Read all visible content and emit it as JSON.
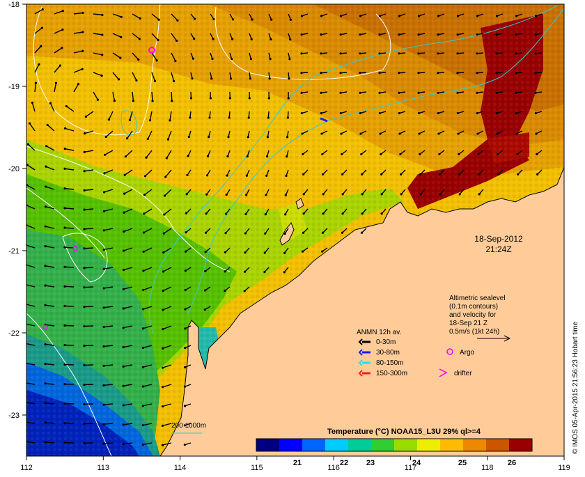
{
  "map": {
    "lon_ticks": [
      "112",
      "113",
      "114",
      "115",
      "116",
      "117",
      "118",
      "119"
    ],
    "lat_ticks": [
      "-18",
      "-19",
      "-20",
      "-21",
      "-22",
      "-23"
    ],
    "date": "18-Sep-2012",
    "time": "21:24Z",
    "altimetric_note": [
      "Altimetric sealevel",
      "(0.1m contours)",
      "and velocity for",
      "18-Sep 21 Z",
      "0.5m/s (1kt 24h)"
    ],
    "legend": {
      "title": "ANMN 12h av.",
      "items": [
        {
          "label": "0-30m",
          "color": "#000000"
        },
        {
          "label": "30-80m",
          "color": "#1a1aff"
        },
        {
          "label": "80-150m",
          "color": "#22e0e0"
        },
        {
          "label": "150-300m",
          "color": "#ff1a1a"
        }
      ],
      "argo_label": "Argo",
      "argo_color": "#ff00ff",
      "drifter_label": "drifter",
      "drifter_color": "#ff00ff"
    },
    "isobath_label": "200  1000m",
    "isobath_color": "#33cccc",
    "colorbar": {
      "title": "Temperature (°C) NOAA15_L3U 29% ql>=4",
      "ticks": [
        "21",
        "22",
        "23",
        "24",
        "25",
        "26"
      ],
      "colors": [
        "#00007f",
        "#0000ff",
        "#0066ff",
        "#00ccff",
        "#00cc99",
        "#33cc33",
        "#99dd00",
        "#eeee00",
        "#ffbb00",
        "#ee8800",
        "#cc5500",
        "#990000"
      ]
    },
    "credit": "© IMOS 05-Apr-2015 21:56:23 Hobart time",
    "land_color": "#ffcc99"
  }
}
